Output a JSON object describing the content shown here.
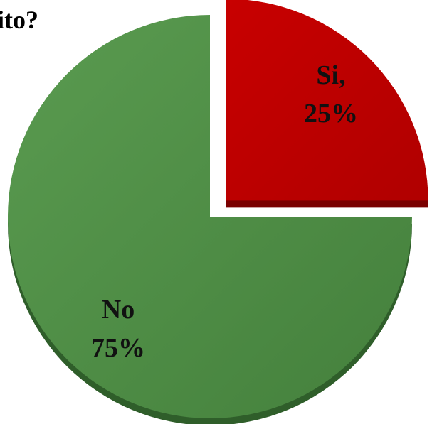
{
  "chart_data": {
    "type": "pie",
    "title": "ito?",
    "categories": [
      "Si",
      "No"
    ],
    "values": [
      25,
      75
    ],
    "unit": "%",
    "exploded": [
      "Si"
    ],
    "three_d": true,
    "legend": "none",
    "data_labels": [
      {
        "line1": "Si,",
        "line2": "25%"
      },
      {
        "line1": "No",
        "line2": "75%"
      }
    ],
    "colors": {
      "Si": "#c00000",
      "No": "#4f8f46",
      "Si_side": "#7a0000",
      "No_side": "#2f5e2a"
    }
  }
}
